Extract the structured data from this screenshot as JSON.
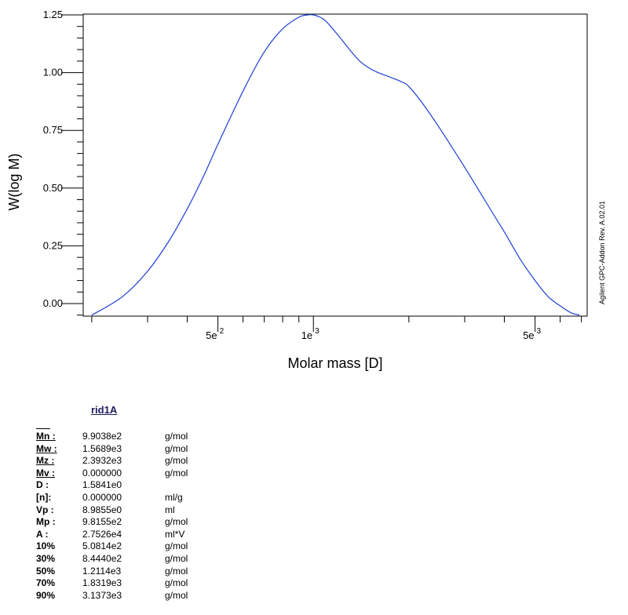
{
  "chart_data": {
    "type": "line",
    "title": "",
    "xlabel": "Molar mass [D]",
    "ylabel": "W(log M)",
    "x_scale": "log",
    "xlim": [
      188,
      7300
    ],
    "ylim": [
      -0.05,
      1.25
    ],
    "y_ticks": [
      "0.00",
      "0.25",
      "0.50",
      "0.75",
      "1.00",
      "1.25"
    ],
    "x_ticks": [
      {
        "value": 500,
        "mantissa": "5e",
        "exp": "2"
      },
      {
        "value": 1000,
        "mantissa": "1e",
        "exp": "3"
      },
      {
        "value": 5000,
        "mantissa": "5e",
        "exp": "3"
      }
    ],
    "grid": false,
    "line_color": "#1f3fd6",
    "series": [
      {
        "x": [
          200,
          250,
          300,
          350,
          400,
          450,
          500,
          600,
          700,
          800,
          900,
          960,
          1000,
          1050,
          1100,
          1200,
          1300,
          1400,
          1500,
          1600,
          1750,
          1900,
          2000,
          2200,
          2500,
          3000,
          3500,
          4000,
          4500,
          5000,
          5500,
          6000,
          6500,
          6900
        ],
        "y": [
          -0.05,
          0.03,
          0.14,
          0.27,
          0.41,
          0.55,
          0.69,
          0.92,
          1.09,
          1.19,
          1.24,
          1.25,
          1.25,
          1.24,
          1.22,
          1.16,
          1.1,
          1.05,
          1.02,
          1.0,
          0.98,
          0.96,
          0.94,
          0.87,
          0.76,
          0.59,
          0.44,
          0.31,
          0.19,
          0.1,
          0.03,
          -0.01,
          -0.04,
          -0.05
        ]
      }
    ]
  },
  "side_note": "Agilent GPC-Addon  Rev. A.02.01",
  "sample_name": "rid1A",
  "stats": [
    {
      "label": "Mn :",
      "value": "9.9038e2",
      "unit": "g/mol",
      "underline": true
    },
    {
      "label": "Mw :",
      "value": "1.5689e3",
      "unit": "g/mol",
      "underline": true
    },
    {
      "label": "Mz :",
      "value": "2.3932e3",
      "unit": "g/mol",
      "underline": true
    },
    {
      "label": "Mv :",
      "value": "0.000000",
      "unit": "g/mol",
      "underline": true
    },
    {
      "label": "D  :",
      "value": "1.5841e0",
      "unit": "",
      "underline": false
    },
    {
      "label": "[n]:",
      "value": "0.000000",
      "unit": "ml/g",
      "underline": false
    },
    {
      "label": "Vp :",
      "value": "8.9855e0",
      "unit": "ml",
      "underline": false
    },
    {
      "label": "Mp :",
      "value": "9.8155e2",
      "unit": "g/mol",
      "underline": false
    },
    {
      "label": "A   :",
      "value": "2.7526e4",
      "unit": "ml*V",
      "underline": false
    },
    {
      "label": "10%",
      "value": "5.0814e2",
      "unit": "g/mol",
      "underline": false
    },
    {
      "label": "30%",
      "value": "8.4440e2",
      "unit": "g/mol",
      "underline": false
    },
    {
      "label": "50%",
      "value": "1.2114e3",
      "unit": "g/mol",
      "underline": false
    },
    {
      "label": "70%",
      "value": "1.8319e3",
      "unit": "g/mol",
      "underline": false
    },
    {
      "label": "90%",
      "value": "3.1373e3",
      "unit": "g/mol",
      "underline": false
    }
  ]
}
